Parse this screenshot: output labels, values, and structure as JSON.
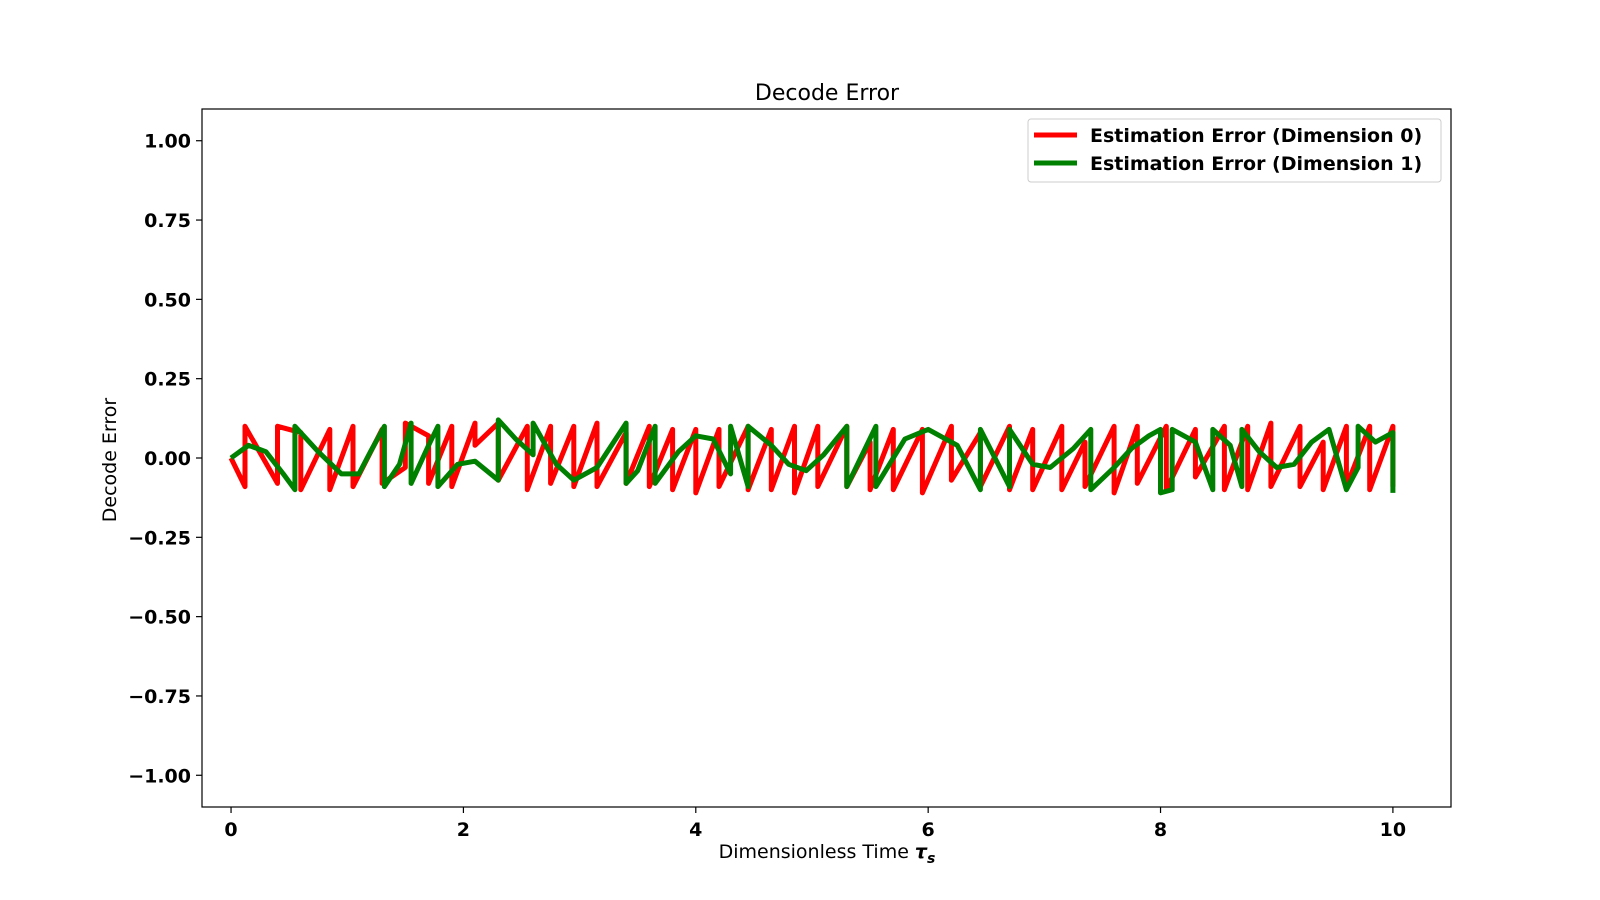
{
  "chart_data": {
    "type": "line",
    "title": "Decode Error",
    "xlabel": "Dimensionless Time",
    "xlabel_symbol": "τ",
    "xlabel_subscript": "s",
    "ylabel": "Decode Error",
    "xlim": [
      -0.25,
      10.5
    ],
    "ylim": [
      -1.1,
      1.1
    ],
    "xticks": [
      0,
      2,
      4,
      6,
      8,
      10
    ],
    "xtick_labels": [
      "0",
      "2",
      "4",
      "6",
      "8",
      "10"
    ],
    "yticks": [
      1.0,
      0.75,
      0.5,
      0.25,
      0.0,
      -0.25,
      -0.5,
      -0.75,
      -1.0
    ],
    "ytick_labels": [
      "1.00",
      "0.75",
      "0.50",
      "0.25",
      "0.00",
      "−0.25",
      "−0.50",
      "−0.75",
      "−1.00"
    ],
    "grid": false,
    "legend_position": "top-right",
    "series": [
      {
        "name": "Estimation Error (Dimension 0)",
        "color": "#ff0000",
        "x": [
          0,
          0.12,
          0.12,
          0.4,
          0.4,
          0.6,
          0.6,
          0.85,
          0.85,
          1.05,
          1.05,
          1.3,
          1.3,
          1.5,
          1.5,
          1.7,
          1.7,
          1.9,
          1.9,
          2.1,
          2.1,
          2.3,
          2.3,
          2.55,
          2.55,
          2.75,
          2.75,
          2.95,
          2.95,
          3.15,
          3.15,
          3.4,
          3.4,
          3.6,
          3.6,
          3.8,
          3.8,
          4.0,
          4.0,
          4.2,
          4.2,
          4.45,
          4.45,
          4.65,
          4.65,
          4.85,
          4.85,
          5.05,
          5.05,
          5.3,
          5.3,
          5.5,
          5.5,
          5.7,
          5.7,
          5.95,
          5.95,
          6.2,
          6.2,
          6.45,
          6.45,
          6.7,
          6.7,
          6.9,
          6.9,
          7.15,
          7.15,
          7.35,
          7.35,
          7.6,
          7.6,
          7.8,
          7.8,
          8.05,
          8.05,
          8.3,
          8.3,
          8.55,
          8.55,
          8.75,
          8.75,
          8.95,
          8.95,
          9.2,
          9.2,
          9.4,
          9.4,
          9.6,
          9.6,
          9.8,
          9.8,
          10.0,
          10.0
        ],
        "y": [
          0,
          -0.09,
          0.1,
          -0.08,
          0.1,
          0.08,
          -0.1,
          0.09,
          -0.1,
          0.1,
          -0.09,
          0.09,
          -0.08,
          -0.03,
          0.11,
          0.07,
          -0.08,
          0.1,
          -0.09,
          0.11,
          0.04,
          0.11,
          -0.07,
          0.1,
          -0.1,
          0.1,
          -0.08,
          0.1,
          -0.09,
          0.11,
          -0.09,
          0.08,
          -0.08,
          0.1,
          -0.09,
          0.09,
          -0.1,
          0.09,
          -0.11,
          0.09,
          -0.09,
          0.1,
          -0.1,
          0.09,
          -0.1,
          0.1,
          -0.11,
          0.1,
          -0.09,
          0.1,
          -0.09,
          0.05,
          -0.1,
          0.09,
          -0.1,
          0.09,
          -0.11,
          0.1,
          -0.07,
          0.08,
          -0.09,
          0.1,
          -0.1,
          0.09,
          -0.1,
          0.1,
          -0.1,
          0.05,
          -0.09,
          0.1,
          -0.11,
          0.1,
          -0.08,
          0.1,
          -0.1,
          0.09,
          -0.06,
          0.1,
          -0.1,
          0.1,
          -0.1,
          0.11,
          -0.09,
          0.1,
          -0.09,
          0.05,
          -0.1,
          0.1,
          -0.09,
          0.1,
          -0.1,
          0.1,
          -0.09
        ]
      },
      {
        "name": "Estimation Error (Dimension 1)",
        "color": "#008000",
        "x": [
          0,
          0.15,
          0.3,
          0.45,
          0.55,
          0.55,
          0.75,
          0.95,
          1.1,
          1.2,
          1.32,
          1.32,
          1.45,
          1.55,
          1.55,
          1.7,
          1.78,
          1.78,
          1.95,
          2.1,
          2.3,
          2.3,
          2.45,
          2.6,
          2.6,
          2.8,
          2.95,
          3.15,
          3.4,
          3.4,
          3.5,
          3.65,
          3.65,
          3.85,
          4.0,
          4.15,
          4.3,
          4.3,
          4.45,
          4.45,
          4.65,
          4.8,
          4.95,
          5.1,
          5.3,
          5.3,
          5.55,
          5.55,
          5.8,
          6.0,
          6.25,
          6.45,
          6.45,
          6.7,
          6.7,
          6.9,
          7.05,
          7.25,
          7.4,
          7.4,
          7.6,
          7.75,
          7.9,
          8.0,
          8.0,
          8.1,
          8.1,
          8.3,
          8.45,
          8.45,
          8.6,
          8.7,
          8.7,
          8.85,
          9.0,
          9.15,
          9.3,
          9.45,
          9.6,
          9.7,
          9.7,
          9.85,
          10.0,
          10.0
        ],
        "y": [
          0,
          0.04,
          0.02,
          -0.05,
          -0.1,
          0.1,
          0.02,
          -0.05,
          -0.05,
          0.02,
          0.1,
          -0.09,
          -0.02,
          0.11,
          -0.08,
          0.04,
          0.1,
          -0.09,
          -0.02,
          -0.01,
          -0.07,
          0.12,
          0.06,
          0.01,
          0.11,
          -0.02,
          -0.07,
          -0.03,
          0.11,
          -0.08,
          -0.04,
          0.1,
          -0.08,
          0.02,
          0.07,
          0.06,
          -0.05,
          0.1,
          -0.09,
          0.1,
          0.04,
          -0.02,
          -0.04,
          0.01,
          0.1,
          -0.09,
          0.1,
          -0.09,
          0.06,
          0.09,
          0.04,
          -0.1,
          0.09,
          -0.09,
          0.09,
          -0.02,
          -0.03,
          0.03,
          0.09,
          -0.1,
          -0.03,
          0.03,
          0.07,
          0.09,
          -0.11,
          -0.1,
          0.09,
          0.05,
          -0.1,
          0.09,
          0.04,
          -0.09,
          0.09,
          0.02,
          -0.03,
          -0.02,
          0.05,
          0.09,
          -0.1,
          -0.03,
          0.1,
          0.05,
          0.08,
          -0.11
        ]
      }
    ]
  }
}
